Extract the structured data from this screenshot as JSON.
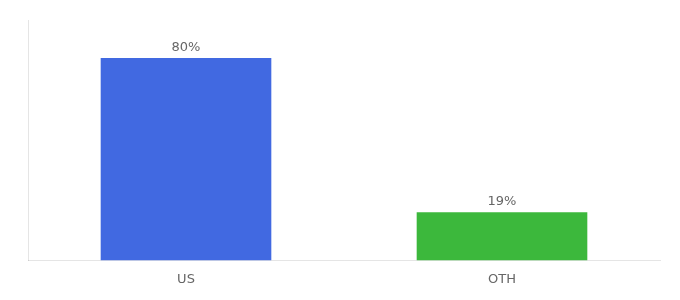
{
  "chart_data": {
    "type": "bar",
    "categories": [
      "US",
      "OTH"
    ],
    "values": [
      80,
      19
    ],
    "value_labels": [
      "80%",
      "19%"
    ],
    "colors": [
      "#4169e1",
      "#3cb83c"
    ],
    "ylim": [
      0,
      95
    ],
    "grid": false,
    "data_labels": true,
    "tick_labels": "x"
  }
}
